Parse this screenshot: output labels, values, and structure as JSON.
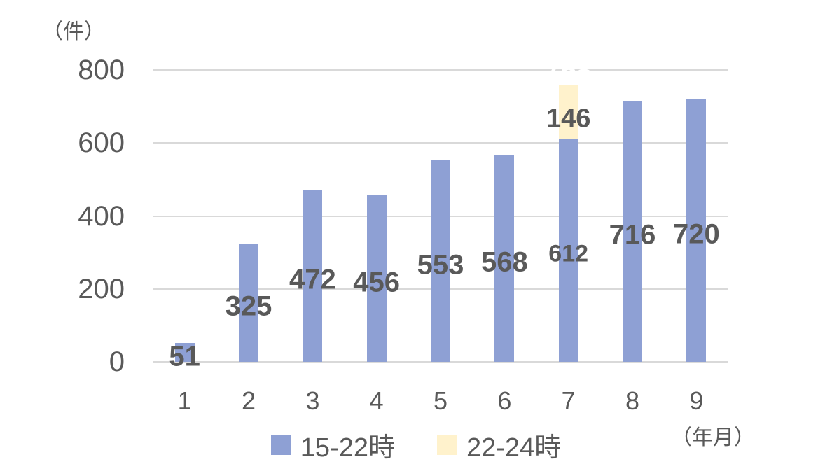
{
  "chart_data": {
    "type": "bar",
    "stacked": true,
    "categories": [
      "1",
      "2",
      "3",
      "4",
      "5",
      "6",
      "7",
      "8",
      "9"
    ],
    "series": [
      {
        "name": "15-22時",
        "color": "#8EA0D4",
        "values": [
          51,
          325,
          472,
          456,
          553,
          568,
          612,
          716,
          720
        ],
        "label_sizes": [
          40,
          40,
          40,
          40,
          40,
          40,
          34,
          40,
          40
        ]
      },
      {
        "name": "22-24時",
        "color": "#FFF2CC",
        "values": [
          0,
          0,
          0,
          0,
          0,
          0,
          146,
          0,
          0
        ],
        "label_size": 38
      }
    ],
    "total_label": {
      "text": "758",
      "category_index": 6,
      "color": "#FFFFFF"
    },
    "y_axis": {
      "unit_label": "（件）",
      "ticks": [
        0,
        200,
        400,
        600,
        800
      ],
      "max": 800
    },
    "x_axis": {
      "unit_label": "（年月）"
    },
    "legend_position": "bottom",
    "grid": true,
    "colors": {
      "text": "#595959",
      "gridline": "#D9D9D9",
      "axis_line": "#D9D9D9"
    }
  }
}
